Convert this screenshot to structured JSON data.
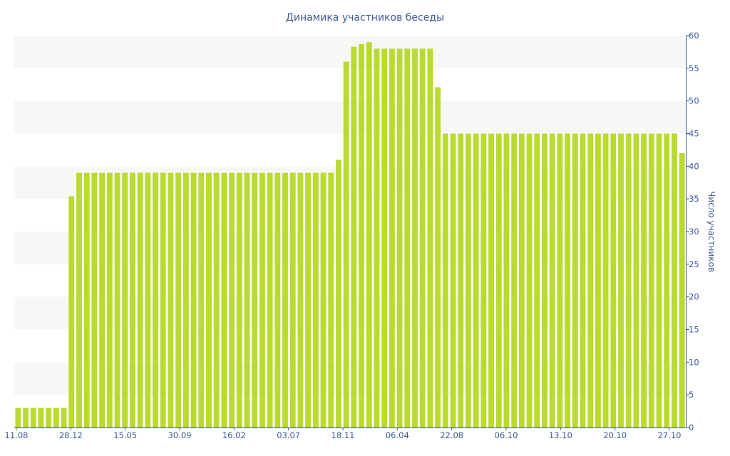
{
  "chart_data": {
    "type": "bar",
    "title": "Динамика участников беседы",
    "xlabel": "",
    "ylabel": "Число участников",
    "ylim": [
      0,
      60
    ],
    "y_ticks": [
      0,
      5,
      10,
      15,
      20,
      25,
      30,
      35,
      40,
      45,
      50,
      55,
      60
    ],
    "y_axis_side": "right",
    "grid": "alternating horizontal bands",
    "legend": "none",
    "x_tick_labels": [
      "11.08",
      "28.12",
      "15.05",
      "30.09",
      "16.02",
      "03.07",
      "18.11",
      "06.04",
      "22.08",
      "06.10",
      "13.10",
      "20.10",
      "27.10"
    ],
    "values": [
      3,
      3,
      3,
      3,
      3,
      3,
      3,
      35.4,
      39,
      39,
      39,
      39,
      39,
      39,
      39,
      39,
      39,
      39,
      39,
      39,
      39,
      39,
      39,
      39,
      39,
      39,
      39,
      39,
      39,
      39,
      39,
      39,
      39,
      39,
      39,
      39,
      39,
      39,
      39,
      39,
      39,
      39,
      41,
      56,
      58.3,
      58.7,
      59,
      58,
      58,
      58,
      58,
      58,
      58,
      58,
      58,
      52.1,
      45,
      45,
      45,
      45,
      45,
      45,
      45,
      45,
      45,
      45,
      45,
      45,
      45,
      45,
      45,
      45,
      45,
      45,
      45,
      45,
      45,
      45,
      45,
      45,
      45,
      45,
      45,
      45,
      45,
      45,
      45,
      42
    ],
    "bar_color": "#bada2e",
    "band_color": "#f7f7f7",
    "axis_color": "#3d5a99"
  }
}
